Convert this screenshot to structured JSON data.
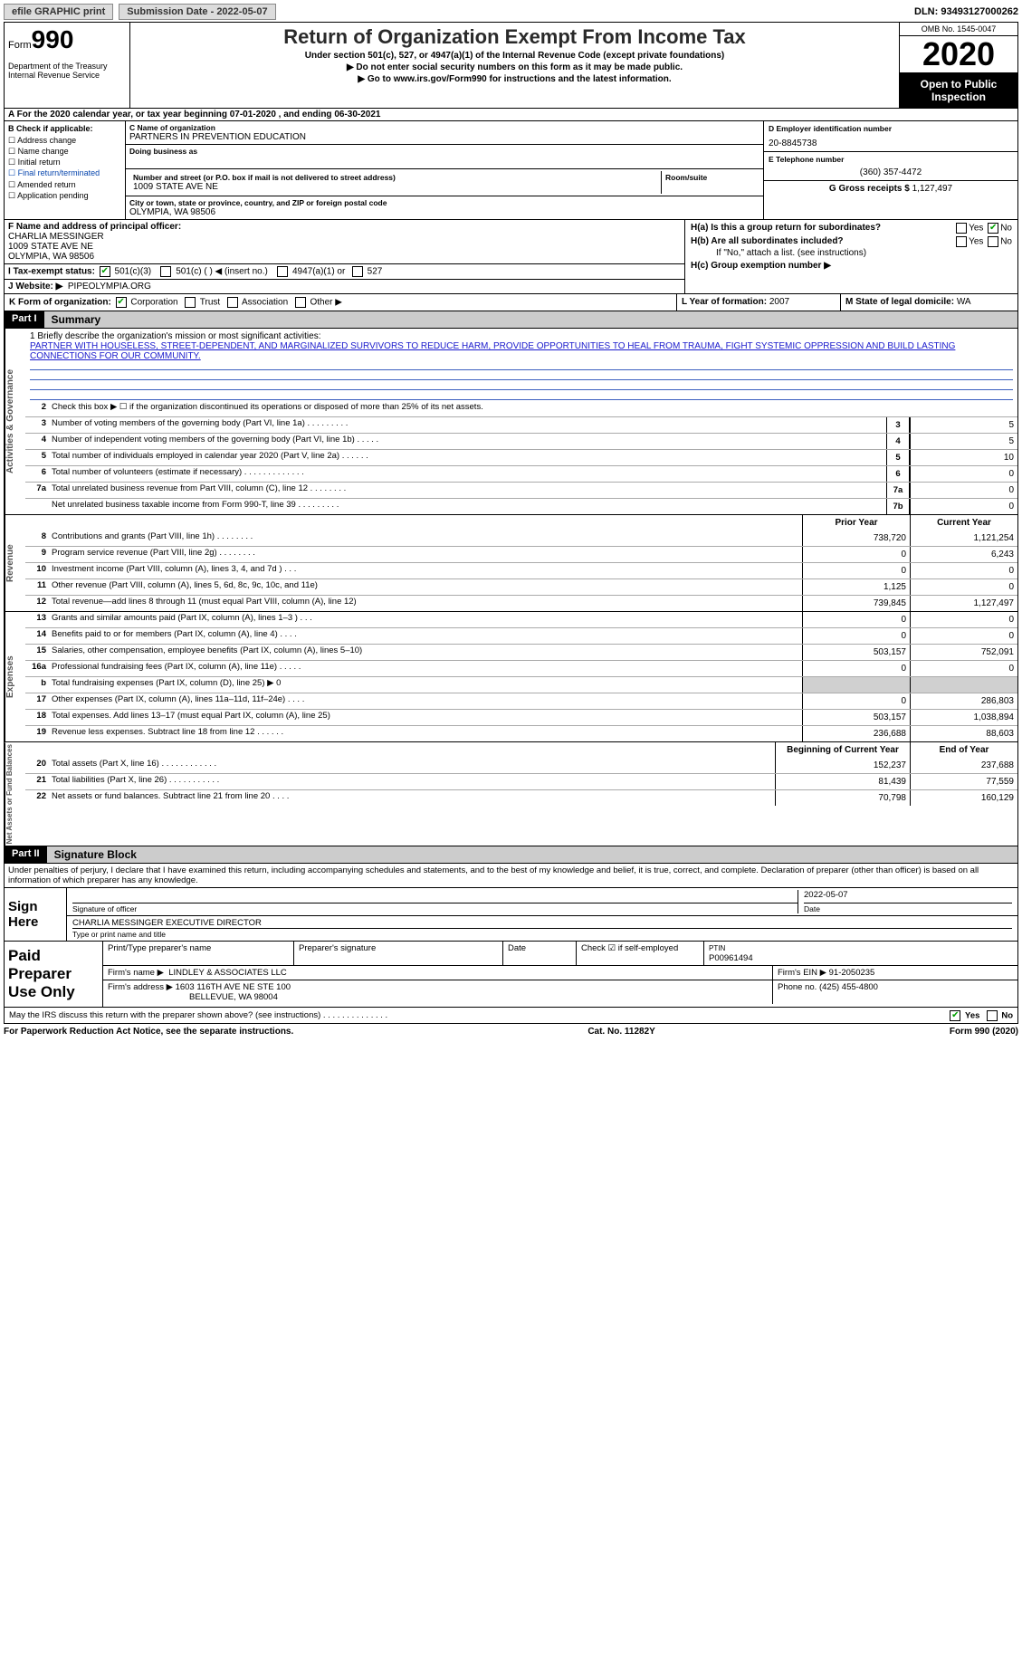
{
  "topbar": {
    "btn1": "efile GRAPHIC print",
    "btn2": "Submission Date - 2022-05-07",
    "dln": "DLN: 93493127000262"
  },
  "header": {
    "form": "990",
    "form_prefix": "Form",
    "title": "Return of Organization Exempt From Income Tax",
    "sub1": "Under section 501(c), 527, or 4947(a)(1) of the Internal Revenue Code (except private foundations)",
    "sub2": "▶ Do not enter social security numbers on this form as it may be made public.",
    "sub3": "▶ Go to www.irs.gov/Form990 for instructions and the latest information.",
    "dept": "Department of the Treasury\nInternal Revenue Service",
    "omb": "OMB No. 1545-0047",
    "year": "2020",
    "open": "Open to Public Inspection"
  },
  "period": "A For the 2020 calendar year, or tax year beginning 07-01-2020  , and ending 06-30-2021",
  "colB": {
    "label": "B Check if applicable:",
    "opts": [
      "Address change",
      "Name change",
      "Initial return",
      "Final return/terminated",
      "Amended return",
      "Application pending"
    ]
  },
  "org": {
    "c_label": "C Name of organization",
    "name": "PARTNERS IN PREVENTION EDUCATION",
    "dba_label": "Doing business as",
    "addr_label": "Number and street (or P.O. box if mail is not delivered to street address)",
    "room_label": "Room/suite",
    "addr": "1009 STATE AVE NE",
    "city_label": "City or town, state or province, country, and ZIP or foreign postal code",
    "city": "OLYMPIA, WA  98506"
  },
  "colD": {
    "ein_label": "D Employer identification number",
    "ein": "20-8845738",
    "tel_label": "E Telephone number",
    "tel": "(360) 357-4472",
    "gross_label": "G Gross receipts $",
    "gross": "1,127,497"
  },
  "F": {
    "label": "F Name and address of principal officer:",
    "name": "CHARLIA MESSINGER",
    "addr1": "1009 STATE AVE NE",
    "addr2": "OLYMPIA, WA  98506"
  },
  "H": {
    "a": "H(a)  Is this a group return for subordinates?",
    "b": "H(b)  Are all subordinates included?",
    "note": "If \"No,\" attach a list. (see instructions)",
    "c": "H(c)  Group exemption number ▶",
    "yes": "Yes",
    "no": "No"
  },
  "I": {
    "label": "I   Tax-exempt status:",
    "a": "501(c)(3)",
    "b": "501(c) (  ) ◀ (insert no.)",
    "c": "4947(a)(1) or",
    "d": "527"
  },
  "J": {
    "label": "J   Website: ▶",
    "site": "PIPEOLYMPIA.ORG"
  },
  "K": {
    "label": "K Form of organization:",
    "a": "Corporation",
    "b": "Trust",
    "c": "Association",
    "d": "Other ▶"
  },
  "L": {
    "label": "L Year of formation:",
    "val": "2007"
  },
  "M": {
    "label": "M State of legal domicile:",
    "val": "WA"
  },
  "parts": {
    "1": {
      "tag": "Part I",
      "title": "Summary"
    },
    "2": {
      "tag": "Part II",
      "title": "Signature Block"
    }
  },
  "mission_label": "1   Briefly describe the organization's mission or most significant activities:",
  "mission": "PARTNER WITH HOUSELESS, STREET-DEPENDENT, AND MARGINALIZED SURVIVORS TO REDUCE HARM, PROVIDE OPPORTUNITIES TO HEAL FROM TRAUMA, FIGHT SYSTEMIC OPPRESSION AND BUILD LASTING CONNECTIONS FOR OUR COMMUNITY.",
  "gov_rows": [
    {
      "n": "2",
      "d": "Check this box ▶ ☐  if the organization discontinued its operations or disposed of more than 25% of its net assets."
    },
    {
      "n": "3",
      "d": "Number of voting members of the governing body (Part VI, line 1a)   .   .   .   .   .   .   .   .   .",
      "m": "3",
      "v": "5"
    },
    {
      "n": "4",
      "d": "Number of independent voting members of the governing body (Part VI, line 1b)   .   .   .   .   .",
      "m": "4",
      "v": "5"
    },
    {
      "n": "5",
      "d": "Total number of individuals employed in calendar year 2020 (Part V, line 2a)   .   .   .   .   .   .",
      "m": "5",
      "v": "10"
    },
    {
      "n": "6",
      "d": "Total number of volunteers (estimate if necessary)   .   .   .   .   .   .   .   .   .   .   .   .   .",
      "m": "6",
      "v": "0"
    },
    {
      "n": "7a",
      "d": "Total unrelated business revenue from Part VIII, column (C), line 12   .   .   .   .   .   .   .   .",
      "m": "7a",
      "v": "0"
    },
    {
      "n": "",
      "d": "Net unrelated business taxable income from Form 990-T, line 39   .   .   .   .   .   .   .   .   .",
      "m": "7b",
      "v": "0"
    }
  ],
  "cols": {
    "prior": "Prior Year",
    "current": "Current Year",
    "boy": "Beginning of Current Year",
    "eoy": "End of Year"
  },
  "rev_rows": [
    {
      "n": "8",
      "d": "Contributions and grants (Part VIII, line 1h)   .   .   .   .   .   .   .   .",
      "p": "738,720",
      "c": "1,121,254"
    },
    {
      "n": "9",
      "d": "Program service revenue (Part VIII, line 2g)   .   .   .   .   .   .   .   .",
      "p": "0",
      "c": "6,243"
    },
    {
      "n": "10",
      "d": "Investment income (Part VIII, column (A), lines 3, 4, and 7d )   .   .   .",
      "p": "0",
      "c": "0"
    },
    {
      "n": "11",
      "d": "Other revenue (Part VIII, column (A), lines 5, 6d, 8c, 9c, 10c, and 11e)",
      "p": "1,125",
      "c": "0"
    },
    {
      "n": "12",
      "d": "Total revenue—add lines 8 through 11 (must equal Part VIII, column (A), line 12)",
      "p": "739,845",
      "c": "1,127,497"
    }
  ],
  "exp_rows": [
    {
      "n": "13",
      "d": "Grants and similar amounts paid (Part IX, column (A), lines 1–3 )   .   .   .",
      "p": "0",
      "c": "0"
    },
    {
      "n": "14",
      "d": "Benefits paid to or for members (Part IX, column (A), line 4)   .   .   .   .",
      "p": "0",
      "c": "0"
    },
    {
      "n": "15",
      "d": "Salaries, other compensation, employee benefits (Part IX, column (A), lines 5–10)",
      "p": "503,157",
      "c": "752,091"
    },
    {
      "n": "16a",
      "d": "Professional fundraising fees (Part IX, column (A), line 11e)   .   .   .   .   .",
      "p": "0",
      "c": "0"
    },
    {
      "n": "b",
      "d": "Total fundraising expenses (Part IX, column (D), line 25) ▶ 0",
      "grey": true
    },
    {
      "n": "17",
      "d": "Other expenses (Part IX, column (A), lines 11a–11d, 11f–24e)   .   .   .   .",
      "p": "0",
      "c": "286,803"
    },
    {
      "n": "18",
      "d": "Total expenses. Add lines 13–17 (must equal Part IX, column (A), line 25)",
      "p": "503,157",
      "c": "1,038,894"
    },
    {
      "n": "19",
      "d": "Revenue less expenses. Subtract line 18 from line 12   .   .   .   .   .   .",
      "p": "236,688",
      "c": "88,603"
    }
  ],
  "net_rows": [
    {
      "n": "20",
      "d": "Total assets (Part X, line 16)   .   .   .   .   .   .   .   .   .   .   .   .",
      "p": "152,237",
      "c": "237,688"
    },
    {
      "n": "21",
      "d": "Total liabilities (Part X, line 26)   .   .   .   .   .   .   .   .   .   .   .",
      "p": "81,439",
      "c": "77,559"
    },
    {
      "n": "22",
      "d": "Net assets or fund balances. Subtract line 21 from line 20   .   .   .   .",
      "p": "70,798",
      "c": "160,129"
    }
  ],
  "sig": {
    "decl": "Under penalties of perjury, I declare that I have examined this return, including accompanying schedules and statements, and to the best of my knowledge and belief, it is true, correct, and complete. Declaration of preparer (other than officer) is based on all information of which preparer has any knowledge.",
    "here": "Sign Here",
    "of_sig": "Signature of officer",
    "date": "Date",
    "sig_date": "2022-05-07",
    "name": "CHARLIA MESSINGER  EXECUTIVE DIRECTOR",
    "type_label": "Type or print name and title"
  },
  "paid": {
    "label": "Paid Preparer Use Only",
    "h1": "Print/Type preparer's name",
    "h2": "Preparer's signature",
    "h3": "Date",
    "h4": "Check ☑ if self-employed",
    "h5_l": "PTIN",
    "h5": "P00961494",
    "firm_l": "Firm's name   ▶",
    "firm": "LINDLEY & ASSOCIATES LLC",
    "ein_l": "Firm's EIN ▶",
    "ein": "91-2050235",
    "addr_l": "Firm's address ▶",
    "addr1": "1603 116TH AVE NE STE 100",
    "addr2": "BELLEVUE, WA  98004",
    "phone_l": "Phone no.",
    "phone": "(425) 455-4800"
  },
  "discuss": "May the IRS discuss this return with the preparer shown above? (see instructions)   .   .   .   .   .   .   .   .   .   .   .   .   .   .",
  "yesno": {
    "yes": "Yes",
    "no": "No"
  },
  "footer": {
    "l": "For Paperwork Reduction Act Notice, see the separate instructions.",
    "m": "Cat. No. 11282Y",
    "r": "Form 990 (2020)"
  }
}
